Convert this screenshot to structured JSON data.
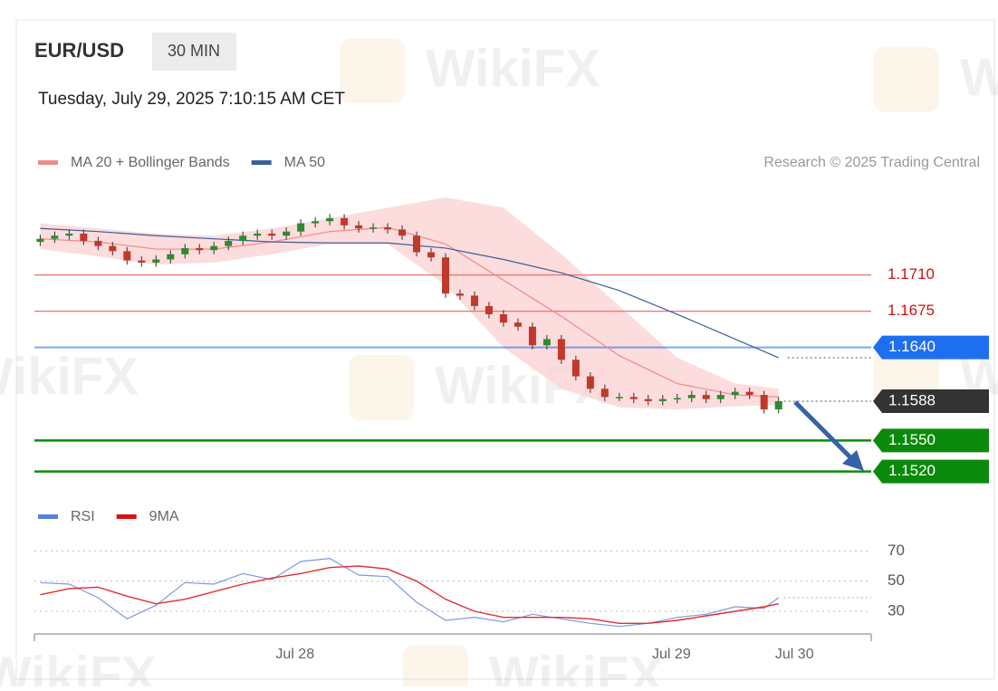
{
  "chart_data": {
    "type": "candlestick",
    "title": "EUR/USD",
    "timeframe": "30 MIN",
    "subtitle": "Tuesday, July 29, 2025 7:10:15 AM CET",
    "credit": "Research © 2025 Trading Central",
    "watermark": "WikiFX",
    "legend": [
      {
        "name": "MA 20 + Bollinger Bands",
        "color": "#f08a8a"
      },
      {
        "name": "MA 50",
        "color": "#3a5f9a"
      }
    ],
    "xlim": [
      -0.4,
      57.4
    ],
    "xticks": [
      {
        "value": 17.6,
        "label": "Jul 28"
      },
      {
        "value": 43.6,
        "label": "Jul 29"
      },
      {
        "value": 52.1,
        "label": "Jul 30"
      }
    ],
    "ylim": [
      1.1503,
      1.1792
    ],
    "up_color": "#2e8b2e",
    "down_color": "#c0392b",
    "open": [
      1.1742,
      1.1745,
      1.1748,
      1.175,
      1.1743,
      1.1738,
      1.1733,
      1.1724,
      1.1722,
      1.1725,
      1.173,
      1.1736,
      1.1734,
      1.1738,
      1.1743,
      1.1748,
      1.175,
      1.1748,
      1.1752,
      1.176,
      1.1762,
      1.1765,
      1.1758,
      1.1755,
      1.1756,
      1.1754,
      1.1748,
      1.1732,
      1.1727,
      1.1692,
      1.169,
      1.168,
      1.1672,
      1.1664,
      1.166,
      1.1642,
      1.1648,
      1.1628,
      1.1612,
      1.16,
      1.1592,
      1.1592,
      1.159,
      1.1588,
      1.159,
      1.1591,
      1.1594,
      1.159,
      1.1594,
      1.1597,
      1.1594,
      1.158
    ],
    "high": [
      1.1749,
      1.1752,
      1.1754,
      1.1754,
      1.1747,
      1.1742,
      1.1737,
      1.1728,
      1.1729,
      1.1734,
      1.174,
      1.174,
      1.1742,
      1.1747,
      1.1752,
      1.1754,
      1.1754,
      1.1756,
      1.1764,
      1.1766,
      1.1769,
      1.1769,
      1.1762,
      1.176,
      1.176,
      1.1758,
      1.1752,
      1.1736,
      1.1731,
      1.1696,
      1.1694,
      1.1684,
      1.1676,
      1.1668,
      1.1664,
      1.1652,
      1.1652,
      1.1632,
      1.1616,
      1.1604,
      1.1596,
      1.1596,
      1.1594,
      1.1594,
      1.1595,
      1.1598,
      1.1598,
      1.1598,
      1.1601,
      1.1601,
      1.1598,
      1.1592
    ],
    "low": [
      1.1738,
      1.1741,
      1.1744,
      1.1739,
      1.1734,
      1.1729,
      1.172,
      1.1718,
      1.1718,
      1.1721,
      1.1726,
      1.173,
      1.173,
      1.1734,
      1.1739,
      1.1744,
      1.1744,
      1.1744,
      1.1748,
      1.1756,
      1.1758,
      1.1754,
      1.1751,
      1.1751,
      1.175,
      1.1744,
      1.1728,
      1.1723,
      1.1688,
      1.1686,
      1.1676,
      1.1668,
      1.166,
      1.1656,
      1.1638,
      1.1638,
      1.1624,
      1.1608,
      1.1596,
      1.1588,
      1.1588,
      1.1586,
      1.1584,
      1.1584,
      1.1586,
      1.1587,
      1.1586,
      1.1586,
      1.159,
      1.159,
      1.1576,
      1.1576
    ],
    "close": [
      1.1745,
      1.1748,
      1.175,
      1.1743,
      1.1738,
      1.1733,
      1.1724,
      1.1722,
      1.1725,
      1.173,
      1.1736,
      1.1734,
      1.1738,
      1.1743,
      1.1748,
      1.175,
      1.1748,
      1.1752,
      1.176,
      1.1762,
      1.1765,
      1.1758,
      1.1755,
      1.1756,
      1.1754,
      1.1748,
      1.1732,
      1.1727,
      1.1692,
      1.169,
      1.168,
      1.1672,
      1.1664,
      1.166,
      1.1642,
      1.1648,
      1.1628,
      1.1612,
      1.16,
      1.1592,
      1.1592,
      1.159,
      1.1588,
      1.159,
      1.1591,
      1.1594,
      1.159,
      1.1594,
      1.1597,
      1.1594,
      1.158,
      1.1588
    ],
    "band": {
      "x": [
        0,
        4,
        8,
        12,
        16,
        20,
        24,
        28,
        32,
        36,
        40,
        44,
        48,
        51
      ],
      "upper": [
        1.176,
        1.1755,
        1.175,
        1.1748,
        1.1755,
        1.1765,
        1.1775,
        1.1785,
        1.1775,
        1.173,
        1.168,
        1.163,
        1.1605,
        1.16
      ],
      "lower": [
        1.1735,
        1.1728,
        1.172,
        1.1722,
        1.173,
        1.174,
        1.174,
        1.17,
        1.164,
        1.16,
        1.1582,
        1.158,
        1.1583,
        1.1584
      ],
      "color": "#fbd3d3"
    },
    "series": [
      {
        "name": "MA 20",
        "color": "#f08a8a",
        "x": [
          0,
          4,
          8,
          12,
          16,
          20,
          24,
          28,
          32,
          36,
          40,
          44,
          48,
          51
        ],
        "values": [
          1.1745,
          1.1742,
          1.1735,
          1.1735,
          1.1742,
          1.1752,
          1.1756,
          1.174,
          1.1705,
          1.167,
          1.1632,
          1.1605,
          1.1594,
          1.1592
        ]
      },
      {
        "name": "MA 50",
        "color": "#3a5f9a",
        "x": [
          0,
          4,
          8,
          12,
          16,
          20,
          24,
          28,
          32,
          36,
          40,
          44,
          48,
          51
        ],
        "values": [
          1.1755,
          1.1752,
          1.1748,
          1.1745,
          1.1742,
          1.1741,
          1.1741,
          1.1736,
          1.1725,
          1.1712,
          1.1695,
          1.1672,
          1.1648,
          1.163
        ]
      }
    ],
    "levels": [
      {
        "value": 1.171,
        "label": "1.1710",
        "color": "#f07070",
        "style": "line"
      },
      {
        "value": 1.1675,
        "label": "1.1675",
        "color": "#f07070",
        "style": "line"
      },
      {
        "value": 1.164,
        "label": "1.1640",
        "color": "#1e6ff0",
        "style": "tag"
      },
      {
        "value": 1.1588,
        "label": "1.1588",
        "color": "#333333",
        "style": "current"
      },
      {
        "value": 1.155,
        "label": "1.1550",
        "color": "#0a8a0a",
        "style": "tag"
      },
      {
        "value": 1.152,
        "label": "1.1520",
        "color": "#0a8a0a",
        "style": "tag"
      }
    ],
    "rsi": {
      "legend": [
        {
          "name": "RSI",
          "color": "#5b7fe0"
        },
        {
          "name": "9MA",
          "color": "#e01010"
        }
      ],
      "ylim": [
        15,
        78
      ],
      "yticks": [
        30,
        50,
        70
      ],
      "x": [
        0,
        2,
        4,
        6,
        8,
        10,
        12,
        14,
        16,
        18,
        20,
        22,
        24,
        26,
        28,
        30,
        32,
        34,
        36,
        38,
        40,
        42,
        44,
        46,
        48,
        50,
        51
      ],
      "series": [
        {
          "name": "RSI",
          "color": "#7d96e8",
          "values": [
            49,
            48,
            39,
            25,
            34,
            49,
            48,
            55,
            51,
            63,
            65,
            54,
            53,
            36,
            24,
            26,
            23,
            28,
            25,
            22,
            20,
            22,
            26,
            28,
            33,
            32,
            39
          ]
        },
        {
          "name": "9MA",
          "color": "#e03030",
          "values": [
            41,
            45,
            46,
            40,
            35,
            38,
            43,
            48,
            52,
            55,
            59,
            60,
            58,
            50,
            38,
            30,
            26,
            26,
            26,
            25,
            22,
            22,
            24,
            27,
            30,
            33,
            35
          ]
        }
      ]
    }
  }
}
